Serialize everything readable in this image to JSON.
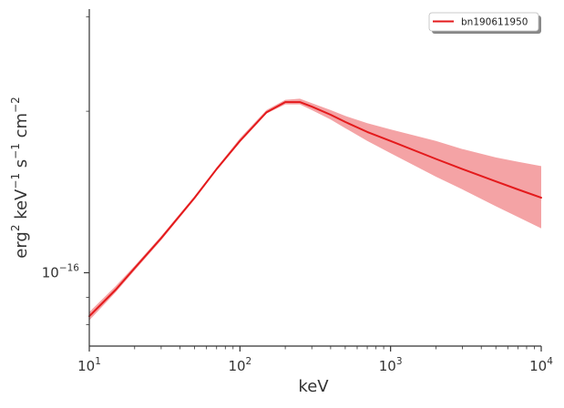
{
  "chart_data": {
    "type": "line",
    "x_scale": "log",
    "y_scale": "log",
    "xlabel": "keV",
    "ylabel_parts": [
      "erg",
      "2",
      " keV",
      "−1",
      " s",
      "−1",
      " cm",
      "−2"
    ],
    "xlim": [
      10,
      10000
    ],
    "ylim": [
      7.3e-17,
      3.1e-16
    ],
    "x_ticks": [
      {
        "value": 10,
        "base": "10",
        "exp": "1"
      },
      {
        "value": 100,
        "base": "10",
        "exp": "2"
      },
      {
        "value": 1000,
        "base": "10",
        "exp": "3"
      },
      {
        "value": 10000,
        "base": "10",
        "exp": "4"
      }
    ],
    "y_ticks": [
      {
        "value": 1e-16,
        "base": "10",
        "exp": "−16"
      }
    ],
    "legend_position": "top-right",
    "series": [
      {
        "name": "bn190611950",
        "color": "#e41a1c",
        "band_color": "#f4a3a5",
        "x": [
          10,
          15,
          20,
          30,
          50,
          70,
          100,
          150,
          200,
          250,
          300,
          400,
          500,
          700,
          1000,
          2000,
          3000,
          5000,
          7000,
          10000
        ],
        "y": [
          8.3e-17,
          9.3e-17,
          1.02e-16,
          1.16e-16,
          1.38e-16,
          1.56e-16,
          1.76e-16,
          1.99e-16,
          2.08e-16,
          2.08e-16,
          2.04e-16,
          1.97e-16,
          1.91e-16,
          1.83e-16,
          1.76e-16,
          1.63e-16,
          1.56e-16,
          1.48e-16,
          1.43e-16,
          1.38e-16
        ],
        "y_low": [
          8.15e-17,
          9.2e-17,
          1.01e-16,
          1.15e-16,
          1.37e-16,
          1.55e-16,
          1.75e-16,
          1.98e-16,
          2.06e-16,
          2.06e-16,
          2.01e-16,
          1.93e-16,
          1.86e-16,
          1.76e-16,
          1.67e-16,
          1.51e-16,
          1.43e-16,
          1.33e-16,
          1.27e-16,
          1.21e-16
        ],
        "y_high": [
          8.45e-17,
          9.45e-17,
          1.03e-16,
          1.17e-16,
          1.39e-16,
          1.57e-16,
          1.78e-16,
          2.01e-16,
          2.1e-16,
          2.11e-16,
          2.07e-16,
          2.01e-16,
          1.96e-16,
          1.9e-16,
          1.85e-16,
          1.76e-16,
          1.7e-16,
          1.64e-16,
          1.61e-16,
          1.58e-16
        ]
      }
    ]
  }
}
